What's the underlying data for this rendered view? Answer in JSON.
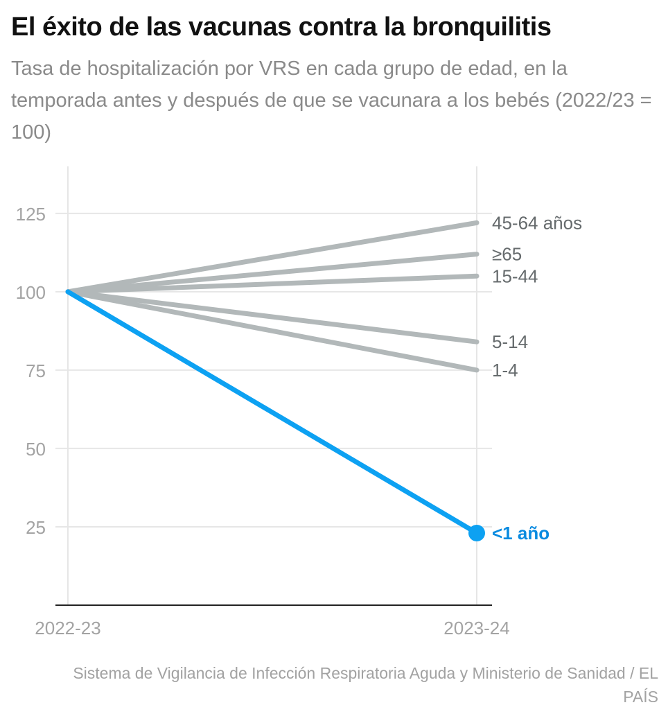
{
  "chart_data": {
    "type": "line",
    "title": "El éxito de las vacunas contra la bronquilitis",
    "subtitle": "Tasa de hospitalización por VRS en cada grupo de edad, en la temporada antes y después de que se vacunara a los bebés (2022/23 = 100)",
    "x": [
      "2022-23",
      "2023-24"
    ],
    "ylim": [
      0,
      140
    ],
    "yticks": [
      25,
      50,
      75,
      100,
      125
    ],
    "grid": true,
    "series": [
      {
        "name": "45-64 años",
        "values": [
          100,
          122
        ],
        "color": "#b2b8b9",
        "label_color": "#666b6d"
      },
      {
        "name": "≥65",
        "values": [
          100,
          112
        ],
        "color": "#b2b8b9",
        "label_color": "#666b6d"
      },
      {
        "name": "15-44",
        "values": [
          100,
          105
        ],
        "color": "#b2b8b9",
        "label_color": "#666b6d"
      },
      {
        "name": "5-14",
        "values": [
          100,
          84
        ],
        "color": "#b2b8b9",
        "label_color": "#666b6d"
      },
      {
        "name": "1-4",
        "values": [
          100,
          75
        ],
        "color": "#b2b8b9",
        "label_color": "#666b6d"
      },
      {
        "name": "<1 año",
        "values": [
          100,
          23
        ],
        "color": "#0da1f2",
        "label_color": "#0a8be0",
        "highlight": true
      }
    ]
  },
  "source": "Sistema de Vigilancia de Infección Respiratoria Aguda y Ministerio de Sanidad / EL PAÍS"
}
